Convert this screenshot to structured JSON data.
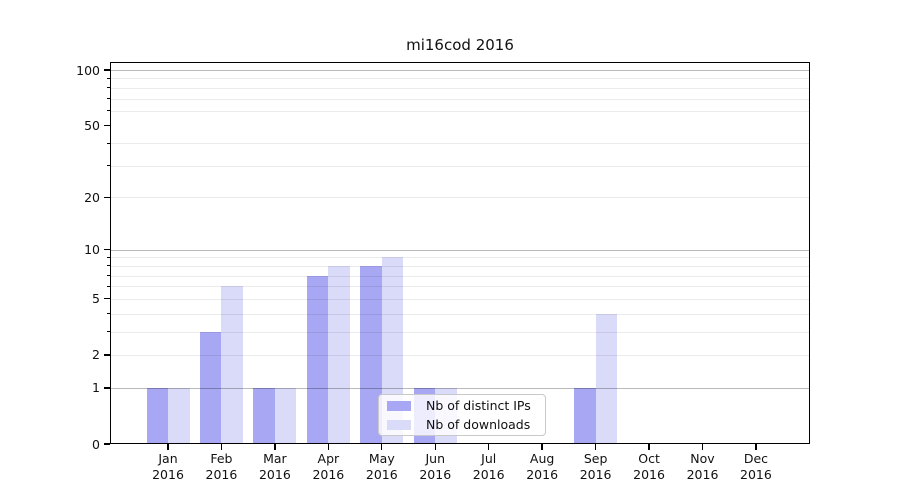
{
  "chart_data": {
    "type": "bar",
    "title": "mi16cod 2016",
    "categories": [
      "Jan",
      "Feb",
      "Mar",
      "Apr",
      "May",
      "Jun",
      "Jul",
      "Aug",
      "Sep",
      "Oct",
      "Nov",
      "Dec"
    ],
    "category_year": "2016",
    "series": [
      {
        "name": "Nb of distinct IPs",
        "color": "#a7a7f3",
        "values": [
          1,
          3,
          1,
          7,
          8,
          1,
          0,
          0,
          1,
          0,
          0,
          0
        ]
      },
      {
        "name": "Nb of downloads",
        "color": "#dadaf9",
        "values": [
          1,
          6,
          1,
          8,
          9,
          1,
          0,
          0,
          4,
          0,
          0,
          0
        ]
      }
    ],
    "xlabel": "",
    "ylabel": "",
    "y_axis": {
      "scale": "log1p",
      "tick_values": [
        0,
        1,
        2,
        5,
        10,
        20,
        50,
        100
      ],
      "tick_labels": [
        "0",
        "1",
        "2",
        "5",
        "10",
        "20",
        "50",
        "100"
      ],
      "major_gridlines": [
        1,
        10,
        100
      ],
      "minor_gridlines": [
        2,
        3,
        4,
        5,
        6,
        7,
        8,
        9,
        20,
        30,
        40,
        60,
        70,
        80,
        90
      ],
      "ylim": [
        0,
        110
      ]
    },
    "legend": {
      "position": "lower center",
      "entries": [
        "Nb of distinct IPs",
        "Nb of downloads"
      ]
    },
    "grid": true
  }
}
